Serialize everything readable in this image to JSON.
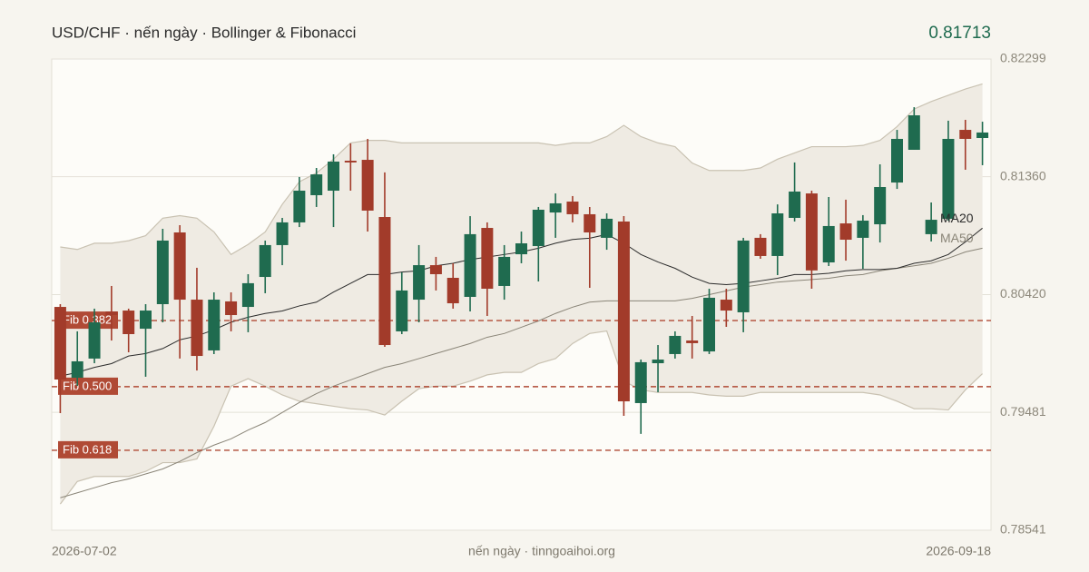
{
  "chart_data": {
    "type": "candlestick",
    "title": "USD/CHF · nến ngày · Bollinger & Fibonacci",
    "last_price": {
      "value": 0.81713,
      "label": "0.81713"
    },
    "source": "nến ngày · tinngoaihoi.org",
    "categories": [
      "2026-07-02",
      null,
      null,
      null,
      null,
      null,
      null,
      null,
      null,
      null,
      null,
      null,
      null,
      null,
      null,
      null,
      null,
      null,
      null,
      null,
      null,
      null,
      null,
      null,
      null,
      null,
      null,
      null,
      null,
      null,
      null,
      null,
      null,
      null,
      null,
      null,
      null,
      null,
      null,
      null,
      null,
      null,
      null,
      null,
      null,
      null,
      null,
      null,
      null,
      null,
      null,
      null,
      null,
      null,
      "2026-09-18"
    ],
    "up_color": "#1f6b4f",
    "down_color": "#a23b2a",
    "open": [
      0.80322,
      0.79757,
      0.7991,
      0.80286,
      0.80293,
      0.80148,
      0.80344,
      0.80916,
      0.8038,
      0.79975,
      0.80366,
      0.80322,
      0.80561,
      0.80815,
      0.80996,
      0.81213,
      0.81249,
      0.81488,
      0.81495,
      0.81039,
      0.80127,
      0.8038,
      0.80655,
      0.80554,
      0.80402,
      0.80952,
      0.80489,
      0.80742,
      0.80807,
      0.81075,
      0.81162,
      0.81061,
      0.80873,
      0.81003,
      0.79555,
      0.79873,
      0.79946,
      0.80054,
      0.79967,
      0.8038,
      0.80279,
      0.80873,
      0.80728,
      0.81032,
      0.81227,
      0.80677,
      0.80988,
      0.80873,
      0.80981,
      0.81314,
      0.81575,
      0.80902,
      0.81025,
      0.81734,
      0.81669
    ],
    "high": [
      0.80344,
      0.80127,
      0.80308,
      0.80489,
      0.80308,
      0.80344,
      0.80945,
      0.80974,
      0.80634,
      0.80438,
      0.80438,
      0.80583,
      0.80851,
      0.81032,
      0.81358,
      0.8143,
      0.81539,
      0.81626,
      0.81662,
      0.81395,
      0.80597,
      0.80815,
      0.80721,
      0.8067,
      0.81046,
      0.80996,
      0.80815,
      0.80923,
      0.81119,
      0.81227,
      0.81206,
      0.81119,
      0.81068,
      0.81046,
      0.79902,
      0.80018,
      0.80127,
      0.8025,
      0.80467,
      0.80467,
      0.80873,
      0.80902,
      0.8114,
      0.81474,
      0.81249,
      0.81198,
      0.81177,
      0.81054,
      0.81459,
      0.81734,
      0.81915,
      0.81155,
      0.81807,
      0.81814,
      0.81799
    ],
    "low": [
      0.79475,
      0.79692,
      0.79873,
      0.80054,
      0.7996,
      0.79765,
      0.80199,
      0.7991,
      0.79815,
      0.79946,
      0.80127,
      0.8012,
      0.80431,
      0.80655,
      0.80959,
      0.81119,
      0.80959,
      0.81249,
      0.80923,
      0.80004,
      0.80105,
      0.80199,
      0.80453,
      0.80308,
      0.80286,
      0.8025,
      0.8038,
      0.8067,
      0.80525,
      0.80873,
      0.80996,
      0.80474,
      0.80778,
      0.79453,
      0.79309,
      0.79642,
      0.7991,
      0.7991,
      0.79946,
      0.80163,
      0.8012,
      0.80706,
      0.80576,
      0.81003,
      0.80467,
      0.80648,
      0.80691,
      0.80626,
      0.80836,
      0.81263,
      0.81575,
      0.80844,
      0.8101,
      0.81416,
      0.81452
    ],
    "close": [
      0.79743,
      0.79888,
      0.80199,
      0.80257,
      0.80105,
      0.80293,
      0.80851,
      0.8038,
      0.79931,
      0.8038,
      0.80257,
      0.80511,
      0.80815,
      0.80996,
      0.81249,
      0.81379,
      0.81481,
      0.81474,
      0.8109,
      0.80018,
      0.80453,
      0.80655,
      0.80583,
      0.80351,
      0.80902,
      0.80467,
      0.80721,
      0.80829,
      0.81097,
      0.81148,
      0.81061,
      0.80916,
      0.81025,
      0.79569,
      0.79881,
      0.79902,
      0.80091,
      0.80033,
      0.80395,
      0.80293,
      0.80851,
      0.80728,
      0.81068,
      0.81242,
      0.80613,
      0.80967,
      0.80858,
      0.8101,
      0.81278,
      0.81662,
      0.8185,
      0.81017,
      0.81662,
      0.81662,
      0.81713
    ],
    "bollinger": {
      "fill": "#efebe3",
      "stroke": "#c9c2b2",
      "upper": [
        0.808,
        0.8078,
        0.8083,
        0.8083,
        0.8085,
        0.8089,
        0.8103,
        0.8105,
        0.8103,
        0.8092,
        0.8074,
        0.8082,
        0.8092,
        0.8114,
        0.8132,
        0.8139,
        0.815,
        0.8163,
        0.8165,
        0.8165,
        0.8163,
        0.8163,
        0.8163,
        0.8163,
        0.8163,
        0.8163,
        0.8163,
        0.8163,
        0.8163,
        0.8161,
        0.8163,
        0.8163,
        0.8168,
        0.8177,
        0.8168,
        0.8163,
        0.816,
        0.8147,
        0.8141,
        0.8141,
        0.8141,
        0.8143,
        0.815,
        0.8155,
        0.816,
        0.816,
        0.816,
        0.8161,
        0.8165,
        0.8176,
        0.819,
        0.8196,
        0.8201,
        0.8206,
        0.821
      ],
      "lower": [
        0.7875,
        0.7893,
        0.7897,
        0.7897,
        0.7897,
        0.7901,
        0.7908,
        0.7908,
        0.7911,
        0.7937,
        0.7969,
        0.7975,
        0.7969,
        0.7962,
        0.7957,
        0.7955,
        0.7953,
        0.7951,
        0.795,
        0.7946,
        0.7957,
        0.7967,
        0.7969,
        0.7969,
        0.7973,
        0.7978,
        0.798,
        0.798,
        0.7987,
        0.7991,
        0.8003,
        0.8011,
        0.8013,
        0.7973,
        0.7966,
        0.7964,
        0.7964,
        0.7964,
        0.7962,
        0.7961,
        0.7961,
        0.7964,
        0.7964,
        0.7964,
        0.7964,
        0.7964,
        0.7964,
        0.7964,
        0.7962,
        0.7957,
        0.7951,
        0.7951,
        0.795,
        0.7966,
        0.7979
      ]
    },
    "overlays": [
      {
        "name": "MA20",
        "color": "#2b2b2b",
        "values": [
          0.7977,
          0.798,
          0.7984,
          0.7987,
          0.7993,
          0.7995,
          0.7999,
          0.8006,
          0.8009,
          0.8014,
          0.802,
          0.8024,
          0.8027,
          0.8029,
          0.8033,
          0.8036,
          0.8044,
          0.8051,
          0.8058,
          0.8058,
          0.806,
          0.8061,
          0.8065,
          0.8067,
          0.807,
          0.8072,
          0.8074,
          0.8076,
          0.8079,
          0.8083,
          0.8086,
          0.8087,
          0.809,
          0.8083,
          0.8074,
          0.8068,
          0.8063,
          0.8056,
          0.8051,
          0.805,
          0.8051,
          0.8053,
          0.8055,
          0.8058,
          0.8058,
          0.8059,
          0.8061,
          0.8062,
          0.8062,
          0.8063,
          0.8067,
          0.8069,
          0.8074,
          0.8084,
          0.8095
        ]
      },
      {
        "name": "MA50",
        "color": "#8a8578",
        "values": [
          0.788,
          0.7884,
          0.7888,
          0.7892,
          0.7895,
          0.7899,
          0.7903,
          0.7909,
          0.7916,
          0.7922,
          0.7927,
          0.7934,
          0.794,
          0.7948,
          0.7956,
          0.7963,
          0.7969,
          0.7974,
          0.7979,
          0.7984,
          0.7987,
          0.7991,
          0.7995,
          0.7999,
          0.8003,
          0.8008,
          0.8011,
          0.8016,
          0.8021,
          0.8027,
          0.8032,
          0.8036,
          0.8037,
          0.8037,
          0.8037,
          0.8037,
          0.8037,
          0.8039,
          0.8042,
          0.8045,
          0.8048,
          0.805,
          0.8052,
          0.8053,
          0.8054,
          0.8055,
          0.8057,
          0.8058,
          0.8061,
          0.8063,
          0.8065,
          0.8067,
          0.8071,
          0.8076,
          0.8079
        ]
      }
    ],
    "fib_color": "#b04a35",
    "fib_levels": [
      {
        "label": "Fib 0.382",
        "value": 0.80213
      },
      {
        "label": "Fib 0.500",
        "value": 0.79686
      },
      {
        "label": "Fib 0.618",
        "value": 0.79179
      }
    ],
    "ylim": [
      0.78541,
      0.82299
    ],
    "yticks": [
      0.82299,
      {
        "value": 0.8136,
        "label": "0.81360"
      },
      {
        "value": 0.8042,
        "label": "0.80420"
      },
      0.79481,
      0.78541
    ],
    "grid": true
  }
}
